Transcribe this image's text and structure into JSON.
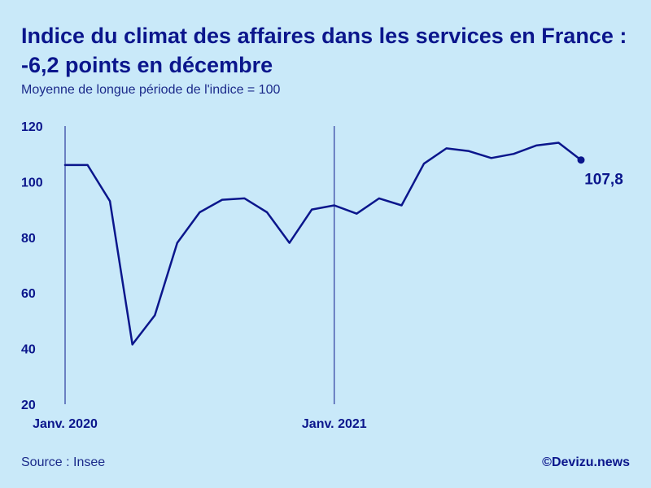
{
  "header": {
    "title": "Indice du climat des affaires dans les services en France : -6,2 points en décembre",
    "subtitle": "Moyenne de longue période de l'indice = 100"
  },
  "footer": {
    "source": "Source : Insee",
    "brand": "©Devizu.news"
  },
  "colors": {
    "background": "#c9e9f9",
    "line": "#0b168c"
  },
  "chart_data": {
    "type": "line",
    "title": "Indice du climat des affaires dans les services en France : -6,2 points en décembre",
    "subtitle": "Moyenne de longue période de l'indice = 100",
    "ylim": [
      20,
      120
    ],
    "yticks": [
      20,
      40,
      60,
      80,
      100,
      120
    ],
    "x_labels": [
      {
        "index": 0,
        "label": "Janv. 2020"
      },
      {
        "index": 12,
        "label": "Janv. 2021"
      }
    ],
    "x": [
      "2020-01",
      "2020-02",
      "2020-03",
      "2020-04",
      "2020-05",
      "2020-06",
      "2020-07",
      "2020-08",
      "2020-09",
      "2020-10",
      "2020-11",
      "2020-12",
      "2021-01",
      "2021-02",
      "2021-03",
      "2021-04",
      "2021-05",
      "2021-06",
      "2021-07",
      "2021-08",
      "2021-09",
      "2021-10",
      "2021-11",
      "2021-12"
    ],
    "series": [
      {
        "values": [
          106,
          106,
          93,
          41.5,
          52,
          78,
          89,
          93.5,
          94,
          89,
          78,
          90,
          91.5,
          88.5,
          94,
          91.5,
          106.5,
          112,
          111,
          108.5,
          110,
          113,
          114,
          107.8
        ]
      }
    ],
    "end_label": "107,8",
    "grid": false
  }
}
